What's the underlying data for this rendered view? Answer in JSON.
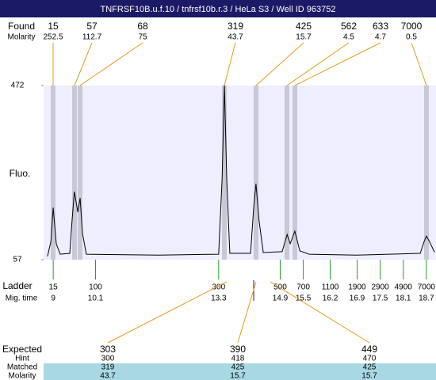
{
  "title": "TNFRSF10B.u.f.10 / tnfrsf10b.r.3 / HeLa S3 / Well ID 963752",
  "found": {
    "label": "Found",
    "sizes": [
      15,
      57,
      68,
      319,
      425,
      562,
      633,
      7000
    ],
    "molarity_label": "Molarity",
    "molarity": [
      252.5,
      112.7,
      75,
      43.7,
      15.7,
      4.5,
      4.7,
      0.5
    ]
  },
  "chart_data": {
    "type": "line",
    "y_label": "Fluo.",
    "ylim": [
      57,
      472
    ],
    "yticks": [
      57,
      472
    ],
    "xlim": [
      8.75,
      18.95
    ],
    "x": [
      8.85,
      8.94,
      9.0,
      9.08,
      9.18,
      9.43,
      9.49,
      9.55,
      9.64,
      9.7,
      9.76,
      9.86,
      11.74,
      13.3,
      13.39,
      13.45,
      13.51,
      13.59,
      14.13,
      14.21,
      14.27,
      14.35,
      14.46,
      14.95,
      15.08,
      15.16,
      15.28,
      15.41,
      15.65,
      16.89,
      18.54,
      18.64,
      18.7,
      18.78,
      18.91
    ],
    "values": [
      65,
      100,
      181,
      95,
      70,
      72,
      150,
      219,
      170,
      204,
      120,
      70,
      68,
      70,
      250,
      472,
      250,
      72,
      72,
      180,
      238,
      150,
      74,
      76,
      117,
      95,
      125,
      78,
      70,
      68,
      72,
      100,
      113,
      100,
      75
    ],
    "color": "#000000",
    "background": "#eeeeff"
  },
  "ladder": {
    "label": "Ladder",
    "sizes": [
      15,
      100,
      300,
      500,
      700,
      1100,
      1900,
      2900,
      4900,
      7000
    ],
    "mig_time_label": "Mig. time",
    "mig_times": [
      9,
      10.1,
      13.3,
      14.9,
      15.5,
      16.2,
      16.9,
      17.5,
      18.1,
      18.7
    ]
  },
  "expected": {
    "label": "Expected",
    "values": [
      303,
      390,
      449
    ],
    "hint_label": "Hint",
    "hint": [
      300,
      418,
      470
    ],
    "matched_label": "Matched",
    "matched": [
      319,
      425,
      425
    ],
    "molarity_label": "Molarity",
    "molarity": [
      43.7,
      15.7,
      15.7
    ]
  }
}
